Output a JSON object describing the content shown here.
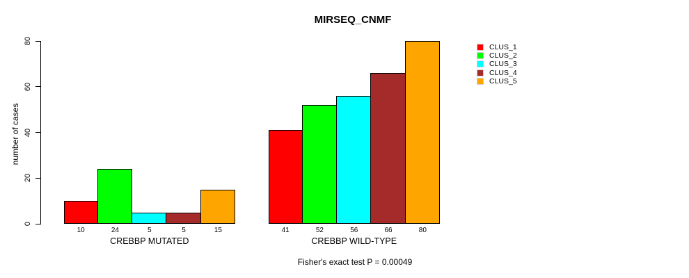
{
  "figure": {
    "title": "MIRSEQ_CNMF",
    "caption": "Fisher's exact test P = 0.00049"
  },
  "chart_data": {
    "type": "bar",
    "title": "MIRSEQ_CNMF",
    "ylabel": "number of cases",
    "xlabel": "",
    "ylim": [
      0,
      80
    ],
    "yticks": [
      0,
      20,
      40,
      60,
      80
    ],
    "grid": false,
    "bar_outline_color": "#000000",
    "legend_position": "right",
    "groups": [
      {
        "label": "CREBBP MUTATED",
        "values": [
          10,
          24,
          5,
          5,
          15
        ]
      },
      {
        "label": "CREBBP WILD-TYPE",
        "values": [
          41,
          52,
          56,
          66,
          80
        ]
      }
    ],
    "series": [
      {
        "name": "CLUS_1",
        "color": "#FF0000",
        "values": [
          10,
          41
        ]
      },
      {
        "name": "CLUS_2",
        "color": "#00FF00",
        "values": [
          24,
          52
        ]
      },
      {
        "name": "CLUS_3",
        "color": "#00FFFF",
        "values": [
          5,
          56
        ]
      },
      {
        "name": "CLUS_4",
        "color": "#A52A2A",
        "values": [
          5,
          66
        ]
      },
      {
        "name": "CLUS_5",
        "color": "#FFA500",
        "values": [
          15,
          80
        ]
      }
    ],
    "bar_value_labels": [
      [
        10,
        24,
        5,
        5,
        15
      ],
      [
        41,
        52,
        56,
        66,
        80
      ]
    ],
    "annotation": "Fisher's exact test P = 0.00049"
  },
  "legend": {
    "entries": [
      {
        "label": "CLUS_1",
        "color": "#FF0000"
      },
      {
        "label": "CLUS_2",
        "color": "#00FF00"
      },
      {
        "label": "CLUS_3",
        "color": "#00FFFF"
      },
      {
        "label": "CLUS_4",
        "color": "#A52A2A"
      },
      {
        "label": "CLUS_5",
        "color": "#FFA500"
      }
    ]
  }
}
